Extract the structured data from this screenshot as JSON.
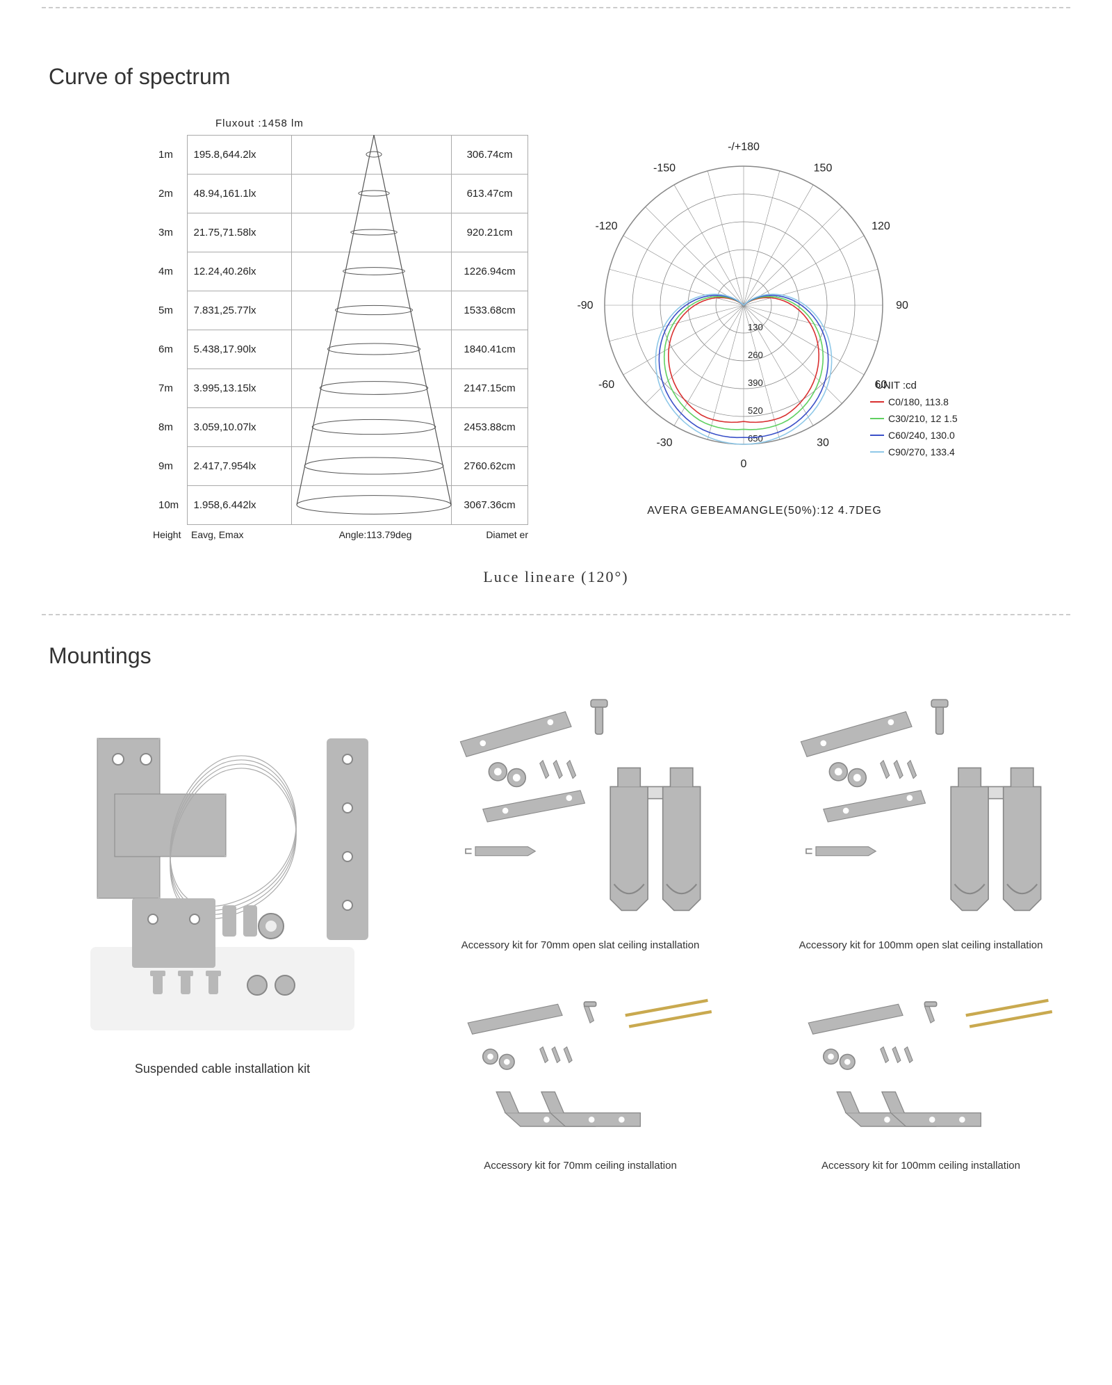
{
  "divider_color": "#cccccc",
  "spectrum": {
    "title": "Curve of spectrum",
    "fluxout_label": "Fluxout :1458   lm",
    "cone": {
      "height_label": "Height",
      "eavg_label": "Eavg, Emax",
      "angle_label": "Angle:113.79deg",
      "diameter_label": "Diamet er",
      "rows": [
        {
          "h": "1m",
          "eavg": "195.8,644.2lx",
          "d": "306.74cm",
          "w": 0.1
        },
        {
          "h": "2m",
          "eavg": "48.94,161.1lx",
          "d": "613.47cm",
          "w": 0.2
        },
        {
          "h": "3m",
          "eavg": "21.75,71.58lx",
          "d": "920.21cm",
          "w": 0.3
        },
        {
          "h": "4m",
          "eavg": "12.24,40.26lx",
          "d": "1226.94cm",
          "w": 0.4
        },
        {
          "h": "5m",
          "eavg": "7.831,25.77lx",
          "d": "1533.68cm",
          "w": 0.5
        },
        {
          "h": "6m",
          "eavg": "5.438,17.90lx",
          "d": "1840.41cm",
          "w": 0.6
        },
        {
          "h": "7m",
          "eavg": "3.995,13.15lx",
          "d": "2147.15cm",
          "w": 0.7
        },
        {
          "h": "8m",
          "eavg": "3.059,10.07lx",
          "d": "2453.88cm",
          "w": 0.8
        },
        {
          "h": "9m",
          "eavg": "2.417,7.954lx",
          "d": "2760.62cm",
          "w": 0.9
        },
        {
          "h": "10m",
          "eavg": "1.958,6.442lx",
          "d": "3067.36cm",
          "w": 1.0
        }
      ],
      "cone_line_color": "#555555",
      "ellipse_line_color": "#555555"
    },
    "polar": {
      "angle_labels": [
        "-/+180",
        "-150",
        "150",
        "-120",
        "120",
        "-90",
        "90",
        "-60",
        "60",
        "-30",
        "30",
        "0"
      ],
      "angle_positions_deg": [
        90,
        120,
        60,
        150,
        30,
        180,
        0,
        210,
        -30,
        240,
        -60,
        270
      ],
      "radial_ticks": [
        130,
        260,
        390,
        520,
        650
      ],
      "unit_label": "UNIT :cd",
      "legend": [
        {
          "label": "C0/180, 113.8",
          "color": "#d93030"
        },
        {
          "label": "C30/210, 12 1.5",
          "color": "#5fd060"
        },
        {
          "label": "C60/240, 130.0",
          "color": "#3a50c8"
        },
        {
          "label": "C90/270, 133.4",
          "color": "#8fc8e8"
        }
      ],
      "axis_color": "#555555",
      "grid_color": "#888888",
      "caption": "AVERA GEBEAMANGLE(50%):12      4.7DEG"
    },
    "subtitle": "Luce lineare (120°)"
  },
  "mountings": {
    "title": "Mountings",
    "left_caption": "Suspended cable installation kit",
    "items": [
      {
        "caption": "Accessory kit for 70mm open slat ceiling installation"
      },
      {
        "caption": "Accessory kit for 100mm open slat ceiling installation"
      },
      {
        "caption": "Accessory kit for 70mm ceiling installation"
      },
      {
        "caption": "Accessory kit for 100mm ceiling installation"
      }
    ],
    "hardware_color": "#b8b8b8",
    "hardware_shadow": "#888888",
    "brass_color": "#c9a94f"
  }
}
